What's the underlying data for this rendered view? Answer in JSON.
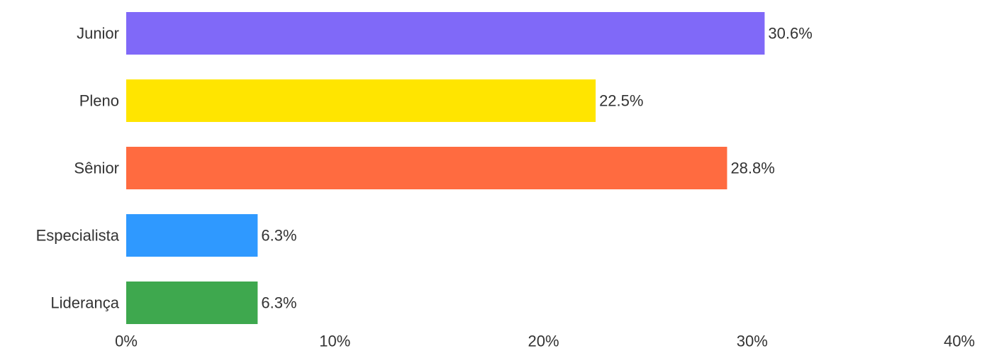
{
  "chart_data": {
    "type": "bar",
    "orientation": "horizontal",
    "categories": [
      "Junior",
      "Pleno",
      "Sênior",
      "Especialista",
      "Liderança"
    ],
    "values": [
      30.6,
      22.5,
      28.8,
      6.3,
      6.3
    ],
    "value_labels": [
      "30.6%",
      "22.5%",
      "28.8%",
      "6.3%",
      "6.3%"
    ],
    "colors": [
      "#8069f8",
      "#ffe500",
      "#ff6b40",
      "#2f99ff",
      "#3ea84e"
    ],
    "xlim": [
      0,
      40
    ],
    "x_ticks": [
      0,
      10,
      20,
      30,
      40
    ],
    "x_tick_labels": [
      "0%",
      "10%",
      "20%",
      "30%",
      "40%"
    ],
    "title": "",
    "xlabel": "",
    "ylabel": "",
    "grid": false,
    "legend": "none"
  }
}
